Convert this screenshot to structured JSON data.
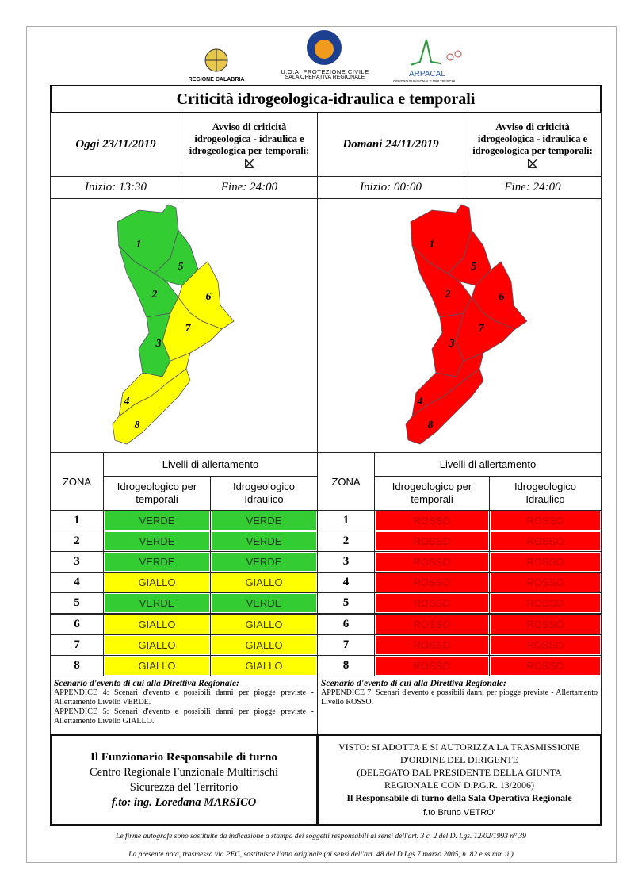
{
  "header": {
    "region": "REGIONE CALABRIA",
    "office_line1": "U.O.A. PROTEZIONE CIVILE",
    "office_line2": "SALA OPERATIVA REGIONALE",
    "agency": "ARPACAL",
    "agency_sub": "CENTRO FUNZIONALE MULTIRISCHI"
  },
  "title": "Criticità idrogeologica-idraulica e temporali",
  "level_colors": {
    "VERDE": "#33cc33",
    "GIALLO": "#ffff00",
    "ROSSO": "#ff0000"
  },
  "level_text_colors": {
    "VERDE": "#1a3d1a",
    "GIALLO": "#3d3d00",
    "ROSSO": "#c00000"
  },
  "days": [
    {
      "label": "Oggi 23/11/2019",
      "avviso": "Avviso di criticità idrogeologica - idraulica e idrogeologica per temporali:",
      "start": "Inizio: 13:30",
      "end": "Fine: 24:00",
      "table": {
        "zone_header": "ZONA",
        "levels_header": "Livelli di allertamento",
        "columns": [
          "Idrogeologico per temporali",
          "Idrogeologico Idraulico"
        ],
        "rows": [
          [
            "1",
            "VERDE",
            "VERDE"
          ],
          [
            "2",
            "VERDE",
            "VERDE"
          ],
          [
            "3",
            "VERDE",
            "VERDE"
          ],
          [
            "4",
            "GIALLO",
            "GIALLO"
          ],
          [
            "5",
            "VERDE",
            "VERDE"
          ],
          [
            "6",
            "GIALLO",
            "GIALLO"
          ],
          [
            "7",
            "GIALLO",
            "GIALLO"
          ],
          [
            "8",
            "GIALLO",
            "GIALLO"
          ]
        ]
      },
      "scenario": {
        "heading": "Scenario d'evento di cui alla Direttiva Regionale:",
        "items": [
          "APPENDICE 4: Scenari d'evento e possibili danni per piogge previste - Allertamento Livello VERDE.",
          "APPENDICE 5: Scenari d'evento e possibili danni per piogge previste - Allertamento Livello GIALLO."
        ]
      }
    },
    {
      "label": "Domani 24/11/2019",
      "avviso": "Avviso di criticità idrogeologica - idraulica e idrogeologica per temporali:",
      "start": "Inizio: 00:00",
      "end": "Fine: 24:00",
      "table": {
        "zone_header": "ZONA",
        "levels_header": "Livelli di allertamento",
        "columns": [
          "Idrogeologico per temporali",
          "Idrogeologico Idraulico"
        ],
        "rows": [
          [
            "1",
            "ROSSO",
            "ROSSO"
          ],
          [
            "2",
            "ROSSO",
            "ROSSO"
          ],
          [
            "3",
            "ROSSO",
            "ROSSO"
          ],
          [
            "4",
            "ROSSO",
            "ROSSO"
          ],
          [
            "5",
            "ROSSO",
            "ROSSO"
          ],
          [
            "6",
            "ROSSO",
            "ROSSO"
          ],
          [
            "7",
            "ROSSO",
            "ROSSO"
          ],
          [
            "8",
            "ROSSO",
            "ROSSO"
          ]
        ]
      },
      "scenario": {
        "heading": "Scenario d'evento di cui alla Direttiva Regionale:",
        "items": [
          "APPENDICE 7: Scenari d'evento e possibili danni per piogge previste - Allertamento Livello ROSSO."
        ]
      }
    }
  ],
  "signatures": {
    "left": [
      "Il Funzionario Responsabile di turno",
      "Centro Regionale Funzionale Multirischi",
      "Sicurezza del Territorio",
      "f.to: ing. Loredana MARSICO"
    ],
    "right": [
      "VISTO: SI ADOTTA E SI AUTORIZZA LA TRASMISSIONE",
      "D'ORDINE DEL DIRIGENTE",
      "(DELEGATO DAL PRESIDENTE DELLA GIUNTA",
      "REGIONALE CON D.P.G.R. 13/2006)",
      "Il Responsabile di turno della Sala Operativa Regionale",
      "f.to Bruno VETRO'"
    ]
  },
  "footer": [
    "Le firme autografe sono sostituite da indicazione a stampa dei soggetti responsabili ai sensi dell'art. 3 c. 2 del D. Lgs. 12/02/1993 n° 39",
    "La presente nota, trasmessa via PEC, sostituisce l'atto originale (ai sensi dell'art. 48 del D.Lgs 7 marzo 2005, n. 82 e ss.mm.ii.)"
  ]
}
